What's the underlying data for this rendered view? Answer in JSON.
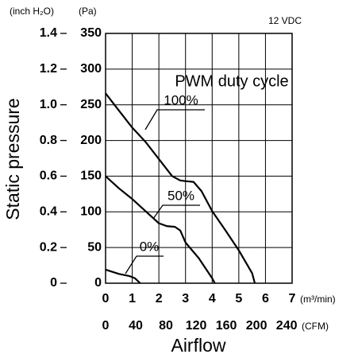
{
  "chart_data": {
    "type": "line",
    "annotation": "12 VDC",
    "legend_title": "PWM duty cycle",
    "x_label": "Airflow",
    "y_label": "Static pressure",
    "x_unit": "(m³/min)",
    "x2_unit": "(CFM)",
    "y_unit": "(Pa)",
    "y2_unit": "(inch H₂O)",
    "xlim": [
      0,
      7
    ],
    "xticks": [
      0,
      1,
      2,
      3,
      4,
      5,
      6,
      7
    ],
    "x2lim": [
      0,
      247.2
    ],
    "x2ticks": [
      0,
      40,
      80,
      120,
      160,
      200,
      240
    ],
    "ylim": [
      0,
      350
    ],
    "yticks": [
      0,
      50,
      100,
      150,
      200,
      250,
      300,
      350
    ],
    "y2lim": [
      0,
      1.4
    ],
    "y2ticks": [
      0,
      0.2,
      0.4,
      0.6,
      0.8,
      {
        "value": 1,
        "label": "1.0"
      },
      1.2,
      1.4
    ],
    "grid": true,
    "series": [
      {
        "name": "100%",
        "color": "#000000",
        "x": [
          0,
          0.5,
          1,
          1.5,
          2,
          2.5,
          2.8,
          3,
          3.3,
          3.6,
          4,
          4.5,
          5,
          5.5,
          5.6
        ],
        "values": [
          266,
          242,
          218,
          198,
          174,
          150,
          144,
          143,
          142,
          129,
          101,
          74,
          46,
          14,
          0
        ]
      },
      {
        "name": "50%",
        "color": "#000000",
        "x": [
          0,
          0.5,
          1,
          1.5,
          2,
          2.3,
          2.6,
          2.8,
          3,
          3.5,
          4,
          4.1
        ],
        "values": [
          150,
          133,
          118,
          101,
          84,
          80,
          79,
          74,
          57,
          35,
          7,
          0
        ]
      },
      {
        "name": "0%",
        "color": "#000000",
        "x": [
          0,
          0.5,
          0.9,
          1.1,
          1.3
        ],
        "values": [
          19,
          13,
          10,
          7,
          0
        ]
      }
    ]
  }
}
